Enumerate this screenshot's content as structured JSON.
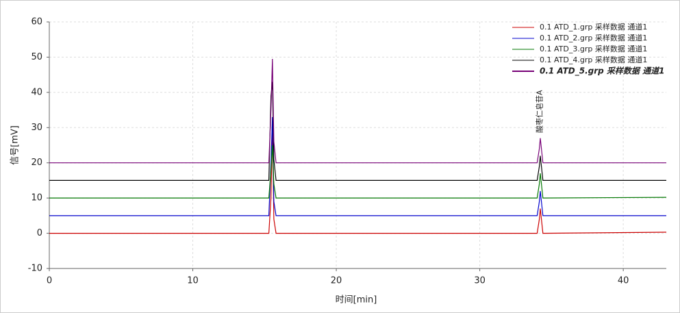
{
  "chart_data": {
    "type": "line",
    "xlabel": "时间[min]",
    "ylabel": "信号[mV]",
    "xlim": [
      0,
      43
    ],
    "ylim": [
      -10,
      60
    ],
    "xticks": [
      0,
      10,
      20,
      30,
      40
    ],
    "yticks": [
      -10,
      0,
      10,
      20,
      30,
      40,
      50,
      60
    ],
    "grid": true,
    "legend": "upper right",
    "annotation": {
      "text": "酸枣仁皂苷A",
      "x": 34.2
    },
    "series": [
      {
        "name": "0.1  ATD_1.grp 采样数据 通道1",
        "color": "#cc0000",
        "x": [
          0,
          15.3,
          15.45,
          15.55,
          15.65,
          15.8,
          34.0,
          34.15,
          34.22,
          34.4,
          43
        ],
        "values": [
          0,
          0,
          10,
          30,
          4,
          0,
          0,
          4,
          7,
          0,
          0.3
        ]
      },
      {
        "name": "0.1  ATD_2.grp 采样数据 通道1",
        "color": "#0000cc",
        "x": [
          0,
          15.3,
          15.45,
          15.55,
          15.65,
          15.8,
          34.0,
          34.15,
          34.22,
          34.4,
          43
        ],
        "values": [
          5,
          5,
          20,
          33,
          9,
          5,
          5,
          9,
          12,
          5,
          5
        ]
      },
      {
        "name": "0.1  ATD_3.grp 采样数据 通道1",
        "color": "#007700",
        "x": [
          0,
          15.3,
          15.45,
          15.55,
          15.65,
          15.8,
          34.0,
          34.15,
          34.22,
          34.4,
          43
        ],
        "values": [
          10,
          10,
          18,
          25,
          14,
          10,
          10,
          14,
          17,
          10,
          10.2
        ]
      },
      {
        "name": "0.1  ATD_4.grp 采样数据 通道1",
        "color": "#000000",
        "x": [
          0,
          15.3,
          15.45,
          15.55,
          15.65,
          15.8,
          34.0,
          34.15,
          34.22,
          34.4,
          43
        ],
        "values": [
          15,
          15,
          39,
          43,
          21,
          15,
          15,
          19,
          22,
          15,
          15
        ]
      },
      {
        "name": "0.1  ATD_5.grp 采样数据 通道1",
        "color": "#770077",
        "bold": true,
        "x": [
          0,
          15.3,
          15.45,
          15.55,
          15.65,
          15.8,
          34.0,
          34.15,
          34.22,
          34.4,
          43
        ],
        "values": [
          20,
          20,
          35,
          49.5,
          26,
          20,
          20,
          24,
          27,
          20,
          20
        ]
      }
    ]
  }
}
